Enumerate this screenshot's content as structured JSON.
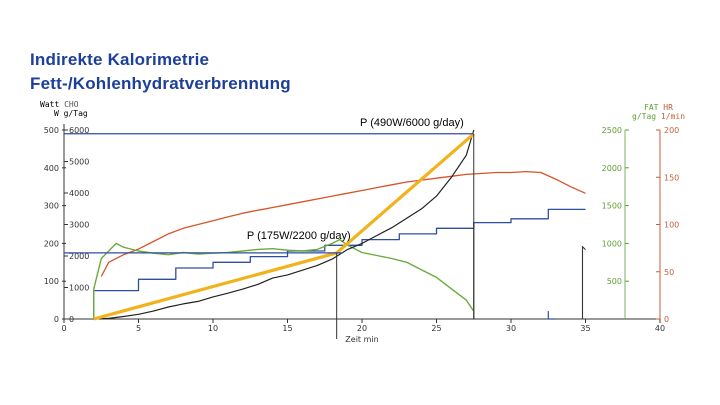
{
  "title_line1": "Indirekte Kalorimetrie",
  "title_line2": "Fett-/Kohlenhydratverbrennung",
  "left_header": {
    "col1_top": "Watt",
    "col2_top": "CHO",
    "col1_bottom": "W",
    "col2_bottom": "g/Tag"
  },
  "right_header": {
    "col1_top": "FAT",
    "col2_top": "HR",
    "col1_bottom": "g/Tag",
    "col2_bottom": "1/min"
  },
  "colors": {
    "title": "#1d3f99",
    "watt_line": "#2e4fa0",
    "hr_line": "#d6542a",
    "fat_line": "#6aab3a",
    "cho_line": "#222222",
    "fit_line": "#f2b21c",
    "axis_left": "#333333",
    "axis_right": "#c0603a",
    "fat_ticks": "#5f9e35"
  },
  "chart_data": {
    "type": "line",
    "xlabel": "Zeit   min",
    "x_ticks": [
      "0",
      "5",
      "10",
      "15",
      "20",
      "25",
      "30",
      "35",
      "40"
    ],
    "xlim": [
      0,
      40
    ],
    "watt_ticks": [
      "0",
      "100",
      "200",
      "300",
      "400",
      "500"
    ],
    "cho_ticks": [
      "0",
      "1000",
      "2000",
      "3000",
      "4000",
      "5000",
      "6000"
    ],
    "fat_ticks": [
      "500",
      "1000",
      "1500",
      "2000",
      "2500"
    ],
    "hr_ticks": [
      "0",
      "50",
      "100",
      "150",
      "200"
    ],
    "ylim_watt": [
      0,
      500
    ],
    "ylim_cho": [
      0,
      6000
    ],
    "ylim_fat": [
      0,
      2500
    ],
    "ylim_hr": [
      0,
      200
    ],
    "annotations": [
      {
        "text": "P (490W/6000 g/day)",
        "x": 27.5,
        "y_watt": 490
      },
      {
        "text": "P (175W/2200 g/day)",
        "x": 18.3,
        "y_watt": 175
      }
    ],
    "series": [
      {
        "key": "watt",
        "axis": "watt",
        "points": [
          [
            2,
            0
          ],
          [
            2,
            75
          ],
          [
            5,
            75
          ],
          [
            5,
            105
          ],
          [
            7.5,
            105
          ],
          [
            7.5,
            135
          ],
          [
            10,
            135
          ],
          [
            10,
            150
          ],
          [
            12.5,
            150
          ],
          [
            12.5,
            165
          ],
          [
            15,
            165
          ],
          [
            15,
            180
          ],
          [
            17.5,
            180
          ],
          [
            17.5,
            195
          ],
          [
            20,
            195
          ],
          [
            20,
            210
          ],
          [
            22.5,
            210
          ],
          [
            22.5,
            225
          ],
          [
            25,
            225
          ],
          [
            25,
            240
          ],
          [
            27.5,
            240
          ],
          [
            27.5,
            255
          ],
          [
            30,
            255
          ],
          [
            30,
            265
          ],
          [
            32.5,
            265
          ],
          [
            32.5,
            290
          ],
          [
            35,
            290
          ]
        ]
      },
      {
        "key": "watt_spikes",
        "axis": "watt",
        "points": [
          [
            27.5,
            255
          ],
          [
            27.5,
            0
          ]
        ]
      },
      {
        "key": "hr",
        "axis": "hr",
        "points": [
          [
            2.5,
            45
          ],
          [
            3,
            60
          ],
          [
            4,
            68
          ],
          [
            5,
            74
          ],
          [
            6,
            82
          ],
          [
            7,
            90
          ],
          [
            8,
            96
          ],
          [
            9,
            100
          ],
          [
            10,
            104
          ],
          [
            11,
            108
          ],
          [
            12,
            112
          ],
          [
            13,
            115
          ],
          [
            14,
            118
          ],
          [
            15,
            121
          ],
          [
            16,
            124
          ],
          [
            17,
            127
          ],
          [
            18,
            130
          ],
          [
            19,
            133
          ],
          [
            20,
            136
          ],
          [
            21,
            139
          ],
          [
            22,
            142
          ],
          [
            23,
            145
          ],
          [
            24,
            147
          ],
          [
            25,
            149
          ],
          [
            26,
            151
          ],
          [
            27,
            153
          ],
          [
            28,
            154
          ],
          [
            29,
            155
          ],
          [
            30,
            155
          ],
          [
            31,
            156
          ],
          [
            32,
            155
          ],
          [
            33,
            148
          ],
          [
            34,
            140
          ],
          [
            35,
            133
          ]
        ]
      },
      {
        "key": "fat",
        "axis": "fat",
        "points": [
          [
            2,
            0
          ],
          [
            2,
            400
          ],
          [
            2.5,
            800
          ],
          [
            3,
            900
          ],
          [
            3.5,
            1000
          ],
          [
            4,
            950
          ],
          [
            5,
            900
          ],
          [
            6,
            870
          ],
          [
            7,
            850
          ],
          [
            8,
            880
          ],
          [
            9,
            860
          ],
          [
            10,
            870
          ],
          [
            11,
            880
          ],
          [
            12,
            900
          ],
          [
            13,
            920
          ],
          [
            14,
            930
          ],
          [
            15,
            910
          ],
          [
            16,
            900
          ],
          [
            17,
            920
          ],
          [
            18,
            1000
          ],
          [
            18.5,
            1050
          ],
          [
            19,
            980
          ],
          [
            20,
            880
          ],
          [
            21,
            840
          ],
          [
            22,
            800
          ],
          [
            23,
            750
          ],
          [
            24,
            650
          ],
          [
            25,
            550
          ],
          [
            26,
            400
          ],
          [
            27,
            250
          ],
          [
            27.5,
            100
          ]
        ]
      },
      {
        "key": "cho",
        "axis": "cho",
        "points": [
          [
            2,
            0
          ],
          [
            3,
            20
          ],
          [
            4,
            80
          ],
          [
            5,
            150
          ],
          [
            6,
            250
          ],
          [
            7,
            380
          ],
          [
            8,
            480
          ],
          [
            9,
            560
          ],
          [
            10,
            700
          ],
          [
            11,
            820
          ],
          [
            12,
            950
          ],
          [
            13,
            1100
          ],
          [
            14,
            1300
          ],
          [
            15,
            1400
          ],
          [
            16,
            1550
          ],
          [
            17,
            1700
          ],
          [
            18,
            1900
          ],
          [
            19,
            2200
          ],
          [
            20,
            2400
          ],
          [
            21,
            2650
          ],
          [
            22,
            2900
          ],
          [
            23,
            3200
          ],
          [
            24,
            3500
          ],
          [
            25,
            3900
          ],
          [
            26,
            4500
          ],
          [
            27,
            5200
          ],
          [
            27.5,
            6000
          ]
        ]
      },
      {
        "key": "cho_tail_a",
        "axis": "cho",
        "points": [
          [
            32.5,
            250
          ],
          [
            32.5,
            0
          ],
          [
            33,
            0
          ]
        ]
      },
      {
        "key": "cho_tail_b",
        "axis": "cho",
        "points": [
          [
            34.8,
            0
          ],
          [
            34.8,
            2300
          ],
          [
            35,
            2200
          ]
        ]
      },
      {
        "key": "fit",
        "axis": "watt",
        "points": [
          [
            2,
            0
          ],
          [
            18.3,
            175
          ],
          [
            27.5,
            490
          ]
        ]
      }
    ]
  }
}
